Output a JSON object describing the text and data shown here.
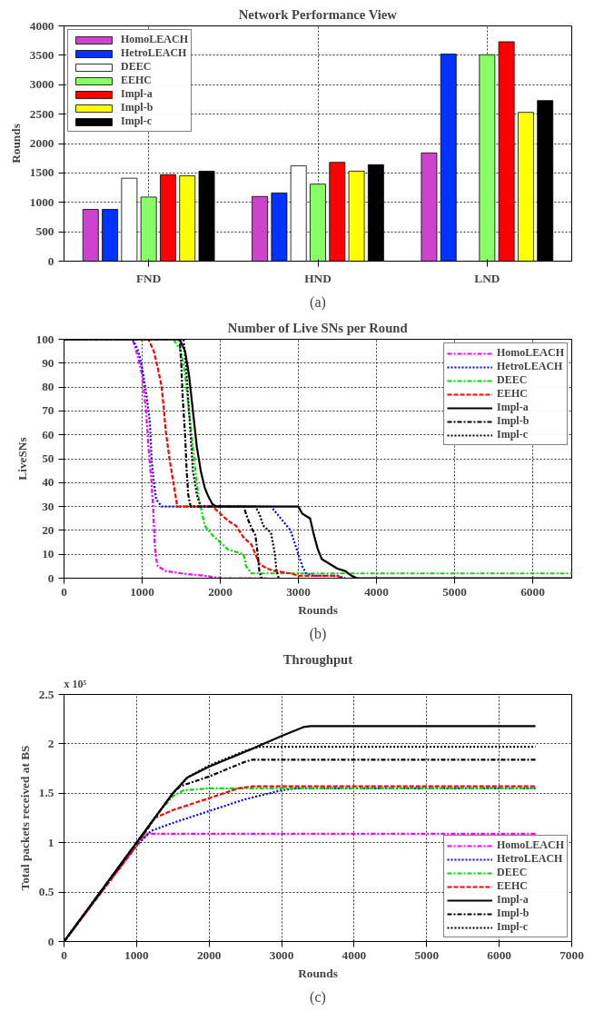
{
  "chart_data": [
    {
      "type": "bar",
      "title": "Network Performance View",
      "ylabel": "Rounds",
      "categories": [
        "FND",
        "HND",
        "LND"
      ],
      "ylim": [
        0,
        4000
      ],
      "yticks": [
        0,
        500,
        1000,
        1500,
        2000,
        2500,
        3000,
        3500,
        4000
      ],
      "grid": true,
      "legend": "top left",
      "annotations": [
        "(a)"
      ],
      "series": [
        {
          "name": "HomoLEACH",
          "color": "#cc44cc",
          "values": [
            880,
            1100,
            1840
          ]
        },
        {
          "name": "HetroLEACH",
          "color": "#0033ff",
          "values": [
            880,
            1160,
            3520
          ]
        },
        {
          "name": "DEEC",
          "color": "#ffffff",
          "values": [
            1410,
            1620,
            null
          ]
        },
        {
          "name": "EEHC",
          "color": "#88ff66",
          "values": [
            1090,
            1310,
            3510
          ]
        },
        {
          "name": "Impl-a",
          "color": "#ff0000",
          "values": [
            1470,
            1680,
            3730
          ]
        },
        {
          "name": "Impl-b",
          "color": "#ffff00",
          "values": [
            1450,
            1530,
            2530
          ]
        },
        {
          "name": "Impl-c",
          "color": "#000000",
          "values": [
            1530,
            1640,
            2730
          ]
        }
      ]
    },
    {
      "type": "line",
      "title": "Number of Live SNs per Round",
      "xlabel": "Rounds",
      "ylabel": "LiveSNs",
      "xlim": [
        0,
        6500
      ],
      "xticks": [
        0,
        1000,
        2000,
        3000,
        4000,
        5000,
        6000
      ],
      "ylim": [
        0,
        100
      ],
      "yticks": [
        0,
        10,
        20,
        30,
        40,
        50,
        60,
        70,
        80,
        90,
        100
      ],
      "grid": true,
      "legend": "top right",
      "annotations": [
        "(b)"
      ],
      "series": [
        {
          "name": "HomoLEACH",
          "color": "#ff00ff",
          "line_style": "dashdot",
          "x": [
            0,
            880,
            950,
            1000,
            1050,
            1080,
            1120,
            1140,
            1160,
            1180,
            1200,
            1300,
            1500,
            1800,
            2000,
            2600
          ],
          "values": [
            100,
            100,
            92,
            85,
            70,
            55,
            40,
            30,
            15,
            8,
            5,
            3,
            2,
            1,
            0,
            0
          ]
        },
        {
          "name": "HetroLEACH",
          "color": "#0000ff",
          "line_style": "dotted",
          "x": [
            0,
            880,
            950,
            1000,
            1050,
            1100,
            1120,
            1150,
            1180,
            1250,
            2650,
            2700,
            2800,
            2900,
            2950,
            3000,
            3050,
            3100,
            3200,
            3500,
            3600
          ],
          "values": [
            100,
            100,
            95,
            88,
            78,
            65,
            50,
            40,
            33,
            30,
            30,
            28,
            24,
            20,
            15,
            10,
            5,
            2,
            1,
            1,
            0
          ]
        },
        {
          "name": "DEEC",
          "color": "#00dd00",
          "line_style": "dashdot",
          "x": [
            0,
            1400,
            1500,
            1550,
            1600,
            1650,
            1700,
            1730,
            1750,
            1770,
            1800,
            1900,
            2000,
            2100,
            2200,
            2300,
            2330,
            2400,
            6500
          ],
          "values": [
            100,
            100,
            95,
            85,
            70,
            55,
            40,
            32,
            30,
            27,
            22,
            18,
            15,
            12,
            11,
            10,
            5,
            2,
            2
          ]
        },
        {
          "name": "EEHC",
          "color": "#ff0000",
          "line_style": "dashed",
          "x": [
            0,
            1080,
            1150,
            1200,
            1250,
            1280,
            1300,
            1350,
            1400,
            1450,
            1900,
            2000,
            2100,
            2200,
            2300,
            2400,
            2450,
            2500,
            2600,
            2700,
            2900,
            3000,
            3500,
            3550
          ],
          "values": [
            100,
            100,
            95,
            88,
            80,
            70,
            62,
            50,
            40,
            30,
            30,
            27,
            24,
            22,
            17,
            14,
            10,
            6,
            4,
            3,
            2,
            1,
            1,
            0
          ]
        },
        {
          "name": "Impl-a",
          "color": "#000000",
          "line_style": "solid",
          "x": [
            0,
            1480,
            1550,
            1600,
            1650,
            1700,
            1750,
            1800,
            1850,
            1900,
            1950,
            3000,
            3050,
            3150,
            3200,
            3250,
            3300,
            3400,
            3500,
            3600,
            3680,
            3750,
            6500
          ],
          "values": [
            100,
            100,
            95,
            85,
            70,
            55,
            45,
            38,
            34,
            31,
            30,
            30,
            27,
            25,
            18,
            12,
            8,
            6,
            4,
            3,
            1,
            0,
            0
          ]
        },
        {
          "name": "Impl-b",
          "color": "#000000",
          "line_style": "dashdot",
          "x": [
            0,
            1480,
            1500,
            1520,
            1550,
            1570,
            1590,
            1620,
            2300,
            2350,
            2400,
            2450,
            2480,
            2500,
            2530
          ],
          "values": [
            100,
            100,
            90,
            75,
            60,
            45,
            35,
            30,
            30,
            25,
            21,
            18,
            10,
            3,
            0
          ]
        },
        {
          "name": "Impl-c",
          "color": "#000000",
          "line_style": "dotted",
          "x": [
            0,
            1530,
            1560,
            1590,
            1620,
            1650,
            1700,
            1750,
            2450,
            2500,
            2550,
            2650,
            2700,
            2720,
            2750
          ],
          "values": [
            100,
            100,
            90,
            75,
            60,
            45,
            35,
            30,
            30,
            27,
            22,
            19,
            10,
            3,
            0
          ]
        }
      ]
    },
    {
      "type": "line",
      "title": "Throughput",
      "xlabel": "Rounds",
      "ylabel": "Total packets received at BS",
      "xlim": [
        0,
        7000
      ],
      "xticks": [
        0,
        1000,
        2000,
        3000,
        4000,
        5000,
        6000,
        7000
      ],
      "ylim": [
        0,
        2.5
      ],
      "yticks": [
        0,
        0.5,
        1,
        1.5,
        2,
        2.5
      ],
      "grid": true,
      "legend": "bottom right",
      "annotations": [
        "x 10⁵",
        "(c)"
      ],
      "series": [
        {
          "name": "HomoLEACH",
          "color": "#ff00ff",
          "line_style": "dashdot",
          "x": [
            0,
            1000,
            1150,
            6500
          ],
          "values": [
            0,
            0.97,
            1.09,
            1.09
          ]
        },
        {
          "name": "HetroLEACH",
          "color": "#0000ff",
          "line_style": "dotted",
          "x": [
            0,
            1000,
            1200,
            1500,
            2000,
            2500,
            3000,
            3200,
            6500
          ],
          "values": [
            0,
            0.97,
            1.12,
            1.2,
            1.32,
            1.44,
            1.53,
            1.55,
            1.55
          ]
        },
        {
          "name": "DEEC",
          "color": "#00dd00",
          "line_style": "dashdot",
          "x": [
            0,
            1000,
            1300,
            1500,
            1650,
            2000,
            6500
          ],
          "values": [
            0,
            0.98,
            1.3,
            1.47,
            1.53,
            1.55,
            1.55
          ]
        },
        {
          "name": "EEHC",
          "color": "#ff0000",
          "line_style": "dashed",
          "x": [
            0,
            1000,
            1250,
            1500,
            2000,
            2400,
            2600,
            6500
          ],
          "values": [
            0,
            0.97,
            1.25,
            1.33,
            1.45,
            1.55,
            1.57,
            1.57
          ]
        },
        {
          "name": "Impl-a",
          "color": "#000000",
          "line_style": "solid",
          "x": [
            0,
            1000,
            1500,
            1700,
            2000,
            2500,
            3000,
            3300,
            3400,
            6500
          ],
          "values": [
            0,
            1.0,
            1.5,
            1.66,
            1.77,
            1.92,
            2.08,
            2.17,
            2.18,
            2.18
          ]
        },
        {
          "name": "Impl-b",
          "color": "#000000",
          "line_style": "dashdot",
          "x": [
            0,
            1000,
            1500,
            1600,
            2000,
            2500,
            2600,
            6500
          ],
          "values": [
            0,
            1.0,
            1.5,
            1.57,
            1.67,
            1.82,
            1.84,
            1.84
          ]
        },
        {
          "name": "Impl-c",
          "color": "#000000",
          "line_style": "dotted",
          "x": [
            0,
            1000,
            1500,
            1700,
            2000,
            2500,
            2700,
            6500
          ],
          "values": [
            0,
            1.0,
            1.5,
            1.66,
            1.78,
            1.93,
            1.97,
            1.97
          ]
        }
      ]
    }
  ]
}
